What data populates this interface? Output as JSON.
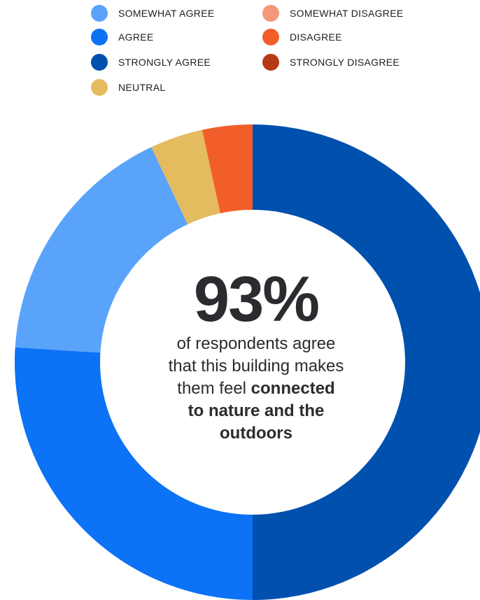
{
  "legend": {
    "items": [
      {
        "label": "SOMEWHAT AGREE",
        "color": "#5aa3fa"
      },
      {
        "label": "SOMEWHAT DISAGREE",
        "color": "#f4977a"
      },
      {
        "label": "AGREE",
        "color": "#0c72f6"
      },
      {
        "label": "DISAGREE",
        "color": "#f15e2a"
      },
      {
        "label": "STRONGLY AGREE",
        "color": "#0050ae"
      },
      {
        "label": "STRONGLY DISAGREE",
        "color": "#b83a14"
      },
      {
        "label": "NEUTRAL",
        "color": "#e5bb60"
      }
    ]
  },
  "center": {
    "value": "93%",
    "line1": "of respondents agree",
    "line2": "that this building makes",
    "line3_prefix": "them feel ",
    "line3_bold": "connected",
    "line4_bold": "to nature and the",
    "line5_bold": "outdoors"
  },
  "chart_data": {
    "type": "pie",
    "donut": true,
    "start_angle": "12 o'clock",
    "direction": "clockwise",
    "slices": [
      {
        "label": "STRONGLY AGREE",
        "value": 50,
        "color": "#0050ae"
      },
      {
        "label": "AGREE",
        "value": 26,
        "color": "#0c72f6"
      },
      {
        "label": "SOMEWHAT AGREE",
        "value": 17,
        "color": "#5aa3fa"
      },
      {
        "label": "NEUTRAL",
        "value": 3.6,
        "color": "#e5bb60"
      },
      {
        "label": "DISAGREE",
        "value": 3.4,
        "color": "#f15e2a"
      }
    ]
  }
}
